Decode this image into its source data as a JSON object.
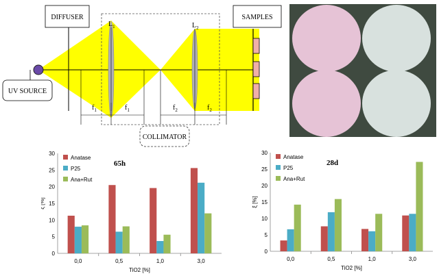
{
  "diagram": {
    "diffuser_label": "DIFFUSER",
    "samples_label": "SAMPLES",
    "uv_source_label": "UV SOURCE",
    "collimator_label": "COLLIMATOR",
    "lens1": {
      "main": "L",
      "sub": "1"
    },
    "lens2": {
      "main": "L",
      "sub": "2"
    },
    "f1": {
      "main": "f",
      "sub": "1"
    },
    "f2": {
      "main": "f",
      "sub": "2"
    },
    "colors": {
      "beam": "#ffff00",
      "lens": "#b0b0b8",
      "source": "#6a4aa8",
      "sample": "#f0b0a8"
    }
  },
  "photo": {
    "colors": {
      "background": "#3f4a40",
      "pink_disc": "#e6c3d6",
      "white_disc": "#d8e1de"
    }
  },
  "chart_data": [
    {
      "type": "bar",
      "title": "65h",
      "xlabel": "TiO2 [%]",
      "ylabel": "ξ [%]",
      "categories": [
        "0,0",
        "0,5",
        "1,0",
        "3,0"
      ],
      "ylim": [
        0,
        30
      ],
      "yticks": [
        "0",
        "5",
        "10",
        "15",
        "20",
        "25",
        "30"
      ],
      "grid": false,
      "legend_position": "top-left",
      "series": [
        {
          "name": "Anatase",
          "color": "#c0504d",
          "values": [
            11.3,
            20.5,
            19.6,
            25.6
          ]
        },
        {
          "name": "P25",
          "color": "#4bacc6",
          "values": [
            8.0,
            6.5,
            3.7,
            21.2
          ]
        },
        {
          "name": "Ana+Rut",
          "color": "#9bbb59",
          "values": [
            8.4,
            8.1,
            5.6,
            12.0
          ]
        }
      ]
    },
    {
      "type": "bar",
      "title": "28d",
      "xlabel": "TiO2 [%]",
      "ylabel": "ξ [%]",
      "categories": [
        "0,0",
        "0,5",
        "1,0",
        "3,0"
      ],
      "ylim": [
        0,
        30
      ],
      "yticks": [
        "0",
        "5",
        "10",
        "15",
        "20",
        "25",
        "30"
      ],
      "grid": false,
      "legend_position": "top-left",
      "series": [
        {
          "name": "Anatase",
          "color": "#c0504d",
          "values": [
            3.3,
            7.6,
            6.8,
            10.9
          ]
        },
        {
          "name": "P25",
          "color": "#4bacc6",
          "values": [
            6.7,
            11.9,
            6.1,
            11.4
          ]
        },
        {
          "name": "Ana+Rut",
          "color": "#9bbb59",
          "values": [
            14.2,
            15.9,
            11.4,
            27.2
          ]
        }
      ]
    }
  ]
}
